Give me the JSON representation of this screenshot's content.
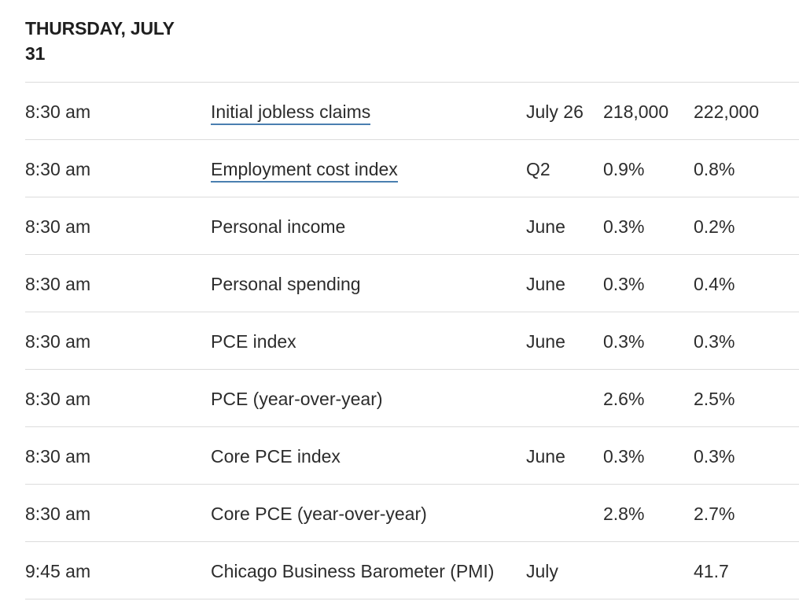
{
  "day_heading": "THURSDAY, JULY 31",
  "rows": [
    {
      "time": "8:30 am",
      "event": "Initial jobless claims",
      "linked": true,
      "period": "July 26",
      "actual": "218,000",
      "forecast": "222,000"
    },
    {
      "time": "8:30 am",
      "event": "Employment cost index",
      "linked": true,
      "period": "Q2",
      "actual": "0.9%",
      "forecast": "0.8%"
    },
    {
      "time": "8:30 am",
      "event": "Personal income",
      "linked": false,
      "period": "June",
      "actual": "0.3%",
      "forecast": "0.2%"
    },
    {
      "time": "8:30 am",
      "event": "Personal spending",
      "linked": false,
      "period": "June",
      "actual": "0.3%",
      "forecast": "0.4%"
    },
    {
      "time": "8:30 am",
      "event": "PCE index",
      "linked": false,
      "period": "June",
      "actual": "0.3%",
      "forecast": "0.3%"
    },
    {
      "time": "8:30 am",
      "event": "PCE (year-over-year)",
      "linked": false,
      "period": "",
      "actual": "2.6%",
      "forecast": "2.5%"
    },
    {
      "time": "8:30 am",
      "event": "Core PCE index",
      "linked": false,
      "period": "June",
      "actual": "0.3%",
      "forecast": "0.3%"
    },
    {
      "time": "8:30 am",
      "event": "Core PCE (year-over-year)",
      "linked": false,
      "period": "",
      "actual": "2.8%",
      "forecast": "2.7%"
    },
    {
      "time": "9:45 am",
      "event": "Chicago Business Barometer (PMI)",
      "linked": false,
      "period": "July",
      "actual": "",
      "forecast": "41.7"
    }
  ],
  "colors": {
    "text": "#2c2c2c",
    "divider": "#dcdcdc",
    "link_underline": "#4a7fb0"
  }
}
